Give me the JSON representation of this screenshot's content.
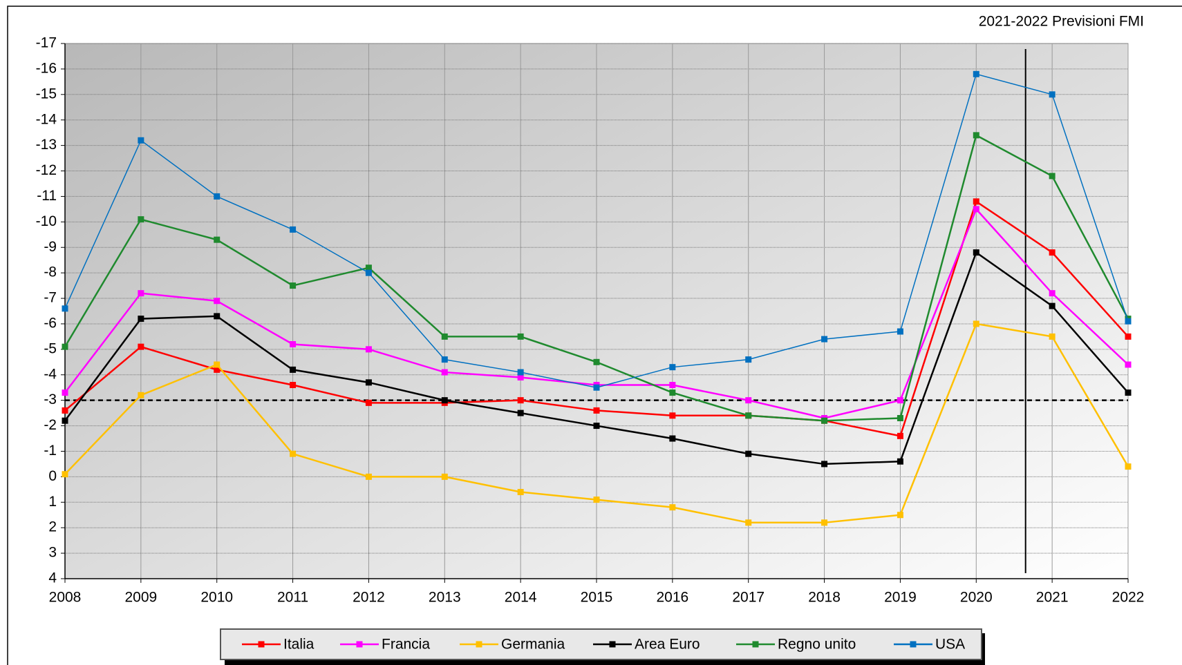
{
  "chart_data": {
    "type": "line",
    "annotation": "2021-2022 Previsioni FMI",
    "x": [
      2008,
      2009,
      2010,
      2011,
      2012,
      2013,
      2014,
      2015,
      2016,
      2017,
      2018,
      2019,
      2020,
      2021,
      2022
    ],
    "xlim": [
      2008,
      2022
    ],
    "xticks": [
      2008,
      2009,
      2010,
      2011,
      2012,
      2013,
      2014,
      2015,
      2016,
      2017,
      2018,
      2019,
      2020,
      2021,
      2022
    ],
    "ylim": [
      4,
      -17
    ],
    "yticks": [
      -17,
      -16,
      -15,
      -14,
      -13,
      -12,
      -11,
      -10,
      -9,
      -8,
      -7,
      -6,
      -5,
      -4,
      -3,
      -2,
      -1,
      0,
      1,
      2,
      3,
      4
    ],
    "grid": true,
    "reference_line": -3,
    "forecast_line_x": 2020.65,
    "series": [
      {
        "name": "Italia",
        "color": "#ff0000",
        "values": [
          -2.6,
          -5.1,
          -4.2,
          -3.6,
          -2.9,
          -2.9,
          -3.0,
          -2.6,
          -2.4,
          -2.4,
          -2.2,
          -1.6,
          -10.8,
          -8.8,
          -5.5
        ]
      },
      {
        "name": "Francia",
        "color": "#ff00ff",
        "values": [
          -3.3,
          -7.2,
          -6.9,
          -5.2,
          -5.0,
          -4.1,
          -3.9,
          -3.6,
          -3.6,
          -3.0,
          -2.3,
          -3.0,
          -10.5,
          -7.2,
          -4.4
        ]
      },
      {
        "name": "Germania",
        "color": "#ffc000",
        "values": [
          -0.1,
          -3.2,
          -4.4,
          -0.9,
          0,
          0,
          0.6,
          0.9,
          1.2,
          1.8,
          1.8,
          1.5,
          -6.0,
          -5.5,
          -0.4
        ]
      },
      {
        "name": "Area Euro",
        "color": "#000000",
        "values": [
          -2.2,
          -6.2,
          -6.3,
          -4.2,
          -3.7,
          -3.0,
          -2.5,
          -2.0,
          -1.5,
          -0.9,
          -0.5,
          -0.6,
          -8.8,
          -6.7,
          -3.3
        ]
      },
      {
        "name": "Regno unito",
        "color": "#1f8a2e",
        "values": [
          -5.1,
          -10.1,
          -9.3,
          -7.5,
          -8.2,
          -5.5,
          -5.5,
          -4.5,
          -3.3,
          -2.4,
          -2.2,
          -2.3,
          -13.4,
          -11.8,
          -6.2
        ]
      },
      {
        "name": "USA",
        "color": "#0070c0",
        "values": [
          -6.6,
          -13.2,
          -11.0,
          -9.7,
          -8.0,
          -4.6,
          -4.1,
          -3.5,
          -4.3,
          -4.6,
          -5.4,
          -5.7,
          -15.8,
          -15.0,
          -6.1
        ]
      }
    ]
  }
}
